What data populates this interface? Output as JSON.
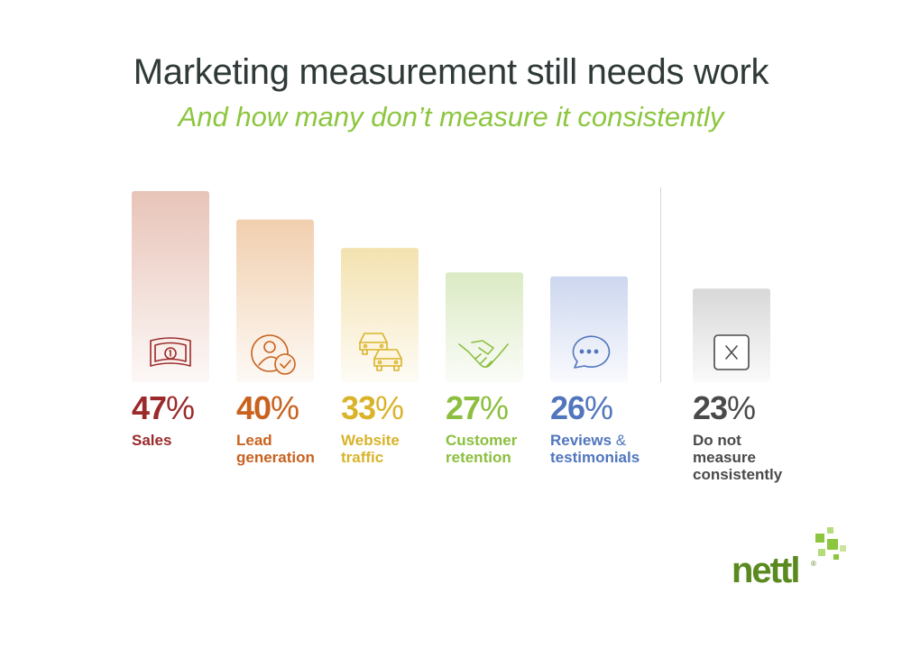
{
  "title": "Marketing measurement still needs work",
  "subtitle": "And how many don’t measure it consistently",
  "chart_data": {
    "type": "bar",
    "categories": [
      "Sales",
      "Lead generation",
      "Website traffic",
      "Customer retention",
      "Reviews & testimonials",
      "Do not measure consistently"
    ],
    "values": [
      47,
      40,
      33,
      27,
      26,
      23
    ],
    "unit": "%",
    "grid": false,
    "legend": "none"
  },
  "bars": [
    {
      "value": "47",
      "label_lines": [
        "Sales"
      ],
      "color": "#9b2a2a",
      "tint": "#e8c4b8",
      "icon": "money-icon"
    },
    {
      "value": "40",
      "label_lines": [
        "Lead",
        "generation"
      ],
      "color": "#c8621e",
      "tint": "#f1cfae",
      "icon": "user-check-icon"
    },
    {
      "value": "33",
      "label_lines": [
        "Website",
        "traffic"
      ],
      "color": "#d9b32a",
      "tint": "#f3e2b0",
      "icon": "cars-icon"
    },
    {
      "value": "27",
      "label_lines": [
        "Customer",
        "retention"
      ],
      "color": "#8cbf3f",
      "tint": "#dbeac4",
      "icon": "handshake-icon"
    },
    {
      "value": "26",
      "label_lines": [
        "Reviews",
        "testimonials"
      ],
      "amp": "&",
      "color": "#5176bd",
      "tint": "#cdd7ef",
      "icon": "chat-icon"
    },
    {
      "value": "23",
      "label_lines": [
        "Do not",
        "measure",
        "consistently"
      ],
      "color": "#4a4a4a",
      "tint": "#d8d8d8",
      "icon": "x-box-icon"
    }
  ],
  "percent_symbol": "%",
  "logo": {
    "text": "nettl",
    "reg": "®",
    "green": "#8cc63f",
    "dark_green": "#5a8a1f"
  }
}
